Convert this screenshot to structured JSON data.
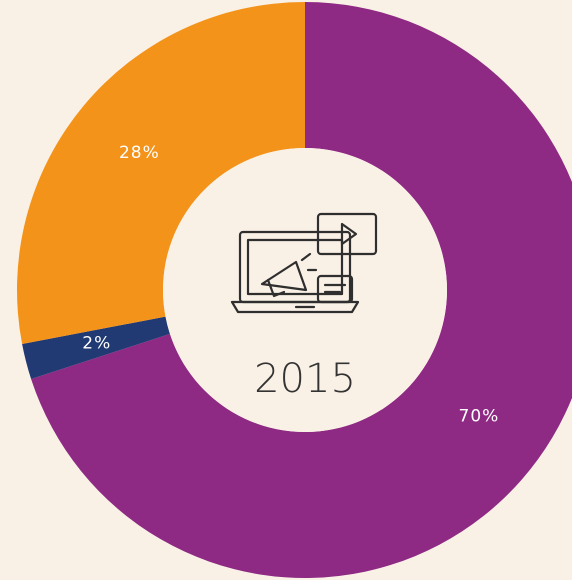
{
  "chart_data": {
    "type": "donut",
    "values": [
      70,
      2,
      28
    ],
    "value_labels": [
      "70%",
      "2%",
      "28%"
    ],
    "colors": [
      "#8e2a84",
      "#213a73",
      "#f4931a"
    ],
    "center_text": "2015"
  }
}
